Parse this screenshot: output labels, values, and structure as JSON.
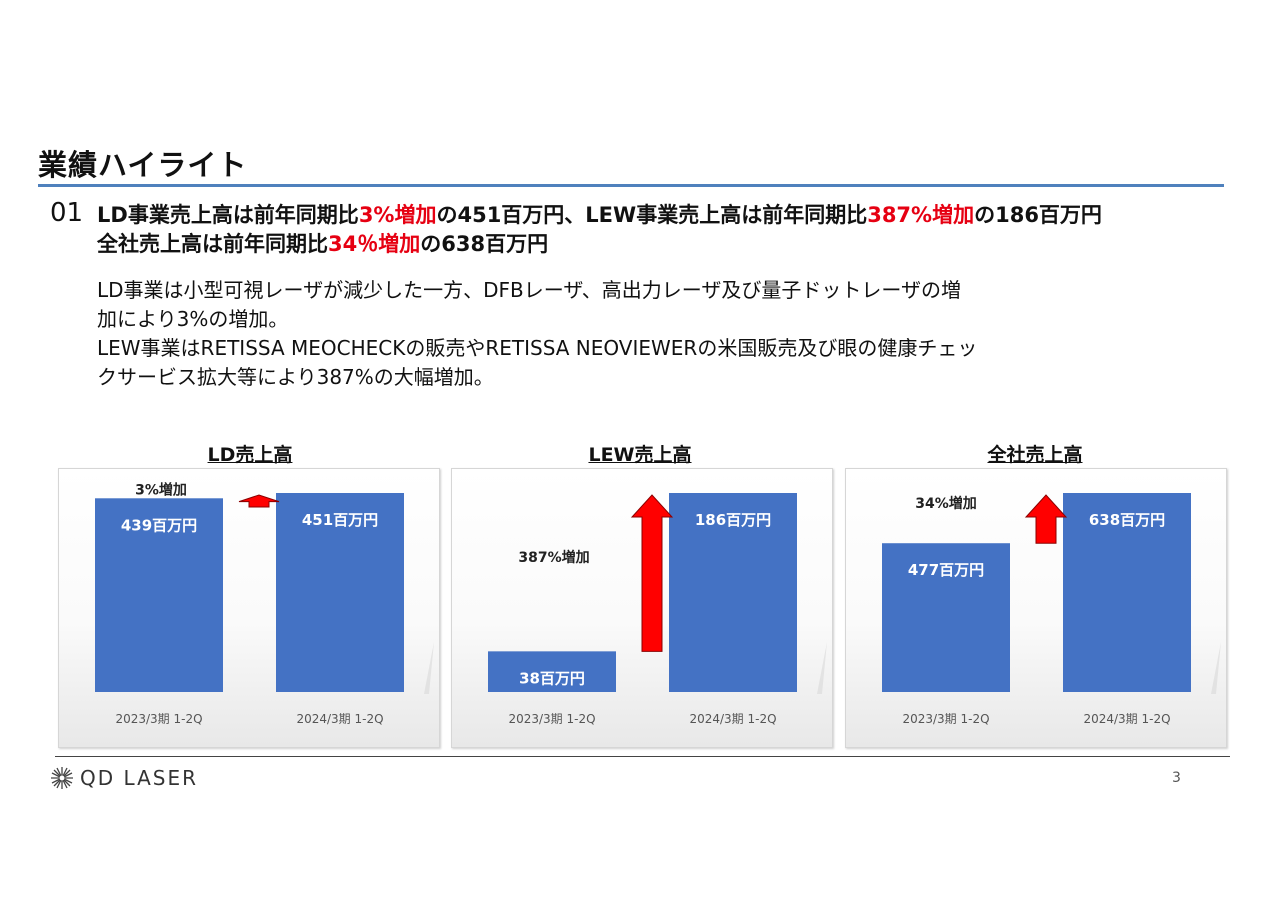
{
  "slide": {
    "title": "業績ハイライト",
    "point_number": "01",
    "headline_line1": [
      {
        "t": "LD事業売上高は前年同期比",
        "c": "black"
      },
      {
        "t": "3%増加",
        "c": "red"
      },
      {
        "t": "の451百万円、LEW事業売上高は前年同期比",
        "c": "black"
      },
      {
        "t": "387%増加",
        "c": "red"
      },
      {
        "t": "の186百万円",
        "c": "black"
      }
    ],
    "headline_line2": [
      {
        "t": "全社売上高は前年同期比",
        "c": "black"
      },
      {
        "t": "34％増加",
        "c": "red"
      },
      {
        "t": "の638百万円",
        "c": "black"
      }
    ],
    "body_lines": [
      "LD事業は小型可視レーザが減少した一方、DFBレーザ、高出力レーザ及び量子ドットレーザの増",
      "加により3%の増加。",
      "LEW事業はRETISSA MEOCHECKの販売やRETISSA NEOVIEWERの米国販売及び眼の健康チェッ",
      "クサービス拡大等により387%の大幅増加。"
    ],
    "page_number": "3",
    "logo_text": "QD LASER"
  },
  "colors": {
    "bar": "#4472c4",
    "arrow": "#ff0000",
    "accent_rule": "#4f81bd",
    "highlight": "#e60012"
  },
  "chart_data": [
    {
      "type": "bar",
      "title": "LD売上高",
      "categories": [
        "2023/3期 1-2Q",
        "2024/3期 1-2Q"
      ],
      "values": [
        439,
        451
      ],
      "value_labels": [
        "439百万円",
        "451百万円"
      ],
      "annotation": "3%増加"
    },
    {
      "type": "bar",
      "title": "LEW売上高",
      "categories": [
        "2023/3期 1-2Q",
        "2024/3期 1-2Q"
      ],
      "values": [
        38,
        186
      ],
      "value_labels": [
        "38百万円",
        "186百万円"
      ],
      "annotation": "387%増加"
    },
    {
      "type": "bar",
      "title": "全社売上高",
      "categories": [
        "2023/3期 1-2Q",
        "2024/3期 1-2Q"
      ],
      "values": [
        477,
        638
      ],
      "value_labels": [
        "477百万円",
        "638百万円"
      ],
      "annotation": "34%増加"
    }
  ]
}
